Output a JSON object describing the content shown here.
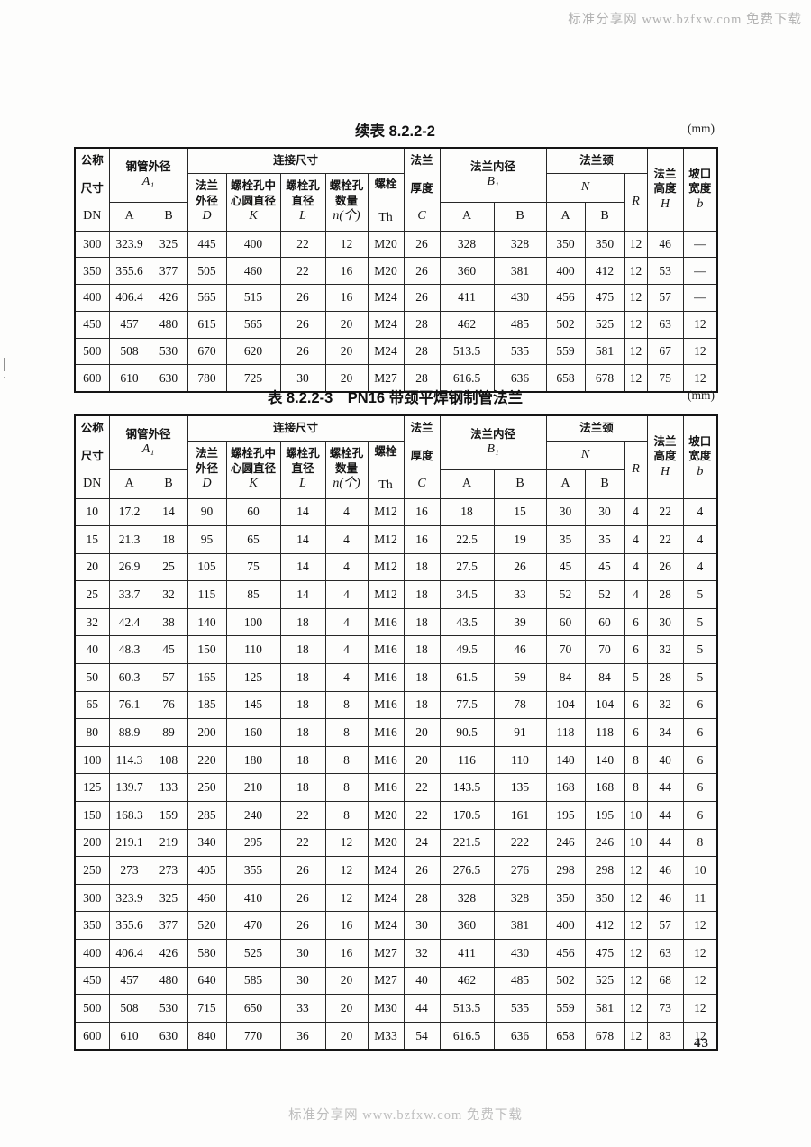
{
  "watermarks": {
    "top": "标准分享网 www.bzfxw.com 免费下载",
    "bottom": "标准分享网 www.bzfxw.com 免费下载"
  },
  "page": {
    "number": "43"
  },
  "columns": {
    "dn_top": "公称",
    "dn_mid": "尺寸",
    "dn_sym": "DN",
    "pipe_od": "钢管外径",
    "pipe_od_sym": "A₁",
    "conn": "连接尺寸",
    "d1": "法兰",
    "d2": "外径",
    "d_sym": "D",
    "k1": "螺栓孔中",
    "k2": "心圆直径",
    "k_sym": "K",
    "l1": "螺栓孔",
    "l2": "直径",
    "l_sym": "L",
    "n1": "螺栓孔",
    "n2": "数量",
    "n_sym": "n(个)",
    "th1": "螺栓",
    "th_sym": "Th",
    "c1": "法兰",
    "c2": "厚度",
    "c_sym": "C",
    "bore": "法兰内径",
    "bore_sym": "B₁",
    "neck": "法兰颈",
    "neck_sym": "N",
    "r_sym": "R",
    "h1": "法兰",
    "h2": "高度",
    "h_sym": "H",
    "b1": "坡口",
    "b2": "宽度",
    "b_sym": "b",
    "sub_a": "A",
    "sub_b": "B"
  },
  "table1": {
    "title": "续表 8.2.2-2",
    "unit": "(mm)",
    "rows": [
      [
        "300",
        "323.9",
        "325",
        "445",
        "400",
        "22",
        "12",
        "M20",
        "26",
        "328",
        "328",
        "350",
        "350",
        "12",
        "46",
        "—"
      ],
      [
        "350",
        "355.6",
        "377",
        "505",
        "460",
        "22",
        "16",
        "M20",
        "26",
        "360",
        "381",
        "400",
        "412",
        "12",
        "53",
        "—"
      ],
      [
        "400",
        "406.4",
        "426",
        "565",
        "515",
        "26",
        "16",
        "M24",
        "26",
        "411",
        "430",
        "456",
        "475",
        "12",
        "57",
        "—"
      ],
      [
        "450",
        "457",
        "480",
        "615",
        "565",
        "26",
        "20",
        "M24",
        "28",
        "462",
        "485",
        "502",
        "525",
        "12",
        "63",
        "12"
      ],
      [
        "500",
        "508",
        "530",
        "670",
        "620",
        "26",
        "20",
        "M24",
        "28",
        "513.5",
        "535",
        "559",
        "581",
        "12",
        "67",
        "12"
      ],
      [
        "600",
        "610",
        "630",
        "780",
        "725",
        "30",
        "20",
        "M27",
        "28",
        "616.5",
        "636",
        "658",
        "678",
        "12",
        "75",
        "12"
      ]
    ]
  },
  "table2": {
    "title": "表 8.2.2-3　PN16 带颈平焊钢制管法兰",
    "unit": "(mm)",
    "rows": [
      [
        "10",
        "17.2",
        "14",
        "90",
        "60",
        "14",
        "4",
        "M12",
        "16",
        "18",
        "15",
        "30",
        "30",
        "4",
        "22",
        "4"
      ],
      [
        "15",
        "21.3",
        "18",
        "95",
        "65",
        "14",
        "4",
        "M12",
        "16",
        "22.5",
        "19",
        "35",
        "35",
        "4",
        "22",
        "4"
      ],
      [
        "20",
        "26.9",
        "25",
        "105",
        "75",
        "14",
        "4",
        "M12",
        "18",
        "27.5",
        "26",
        "45",
        "45",
        "4",
        "26",
        "4"
      ],
      [
        "25",
        "33.7",
        "32",
        "115",
        "85",
        "14",
        "4",
        "M12",
        "18",
        "34.5",
        "33",
        "52",
        "52",
        "4",
        "28",
        "5"
      ],
      [
        "32",
        "42.4",
        "38",
        "140",
        "100",
        "18",
        "4",
        "M16",
        "18",
        "43.5",
        "39",
        "60",
        "60",
        "6",
        "30",
        "5"
      ],
      [
        "40",
        "48.3",
        "45",
        "150",
        "110",
        "18",
        "4",
        "M16",
        "18",
        "49.5",
        "46",
        "70",
        "70",
        "6",
        "32",
        "5"
      ],
      [
        "50",
        "60.3",
        "57",
        "165",
        "125",
        "18",
        "4",
        "M16",
        "18",
        "61.5",
        "59",
        "84",
        "84",
        "5",
        "28",
        "5"
      ],
      [
        "65",
        "76.1",
        "76",
        "185",
        "145",
        "18",
        "8",
        "M16",
        "18",
        "77.5",
        "78",
        "104",
        "104",
        "6",
        "32",
        "6"
      ],
      [
        "80",
        "88.9",
        "89",
        "200",
        "160",
        "18",
        "8",
        "M16",
        "20",
        "90.5",
        "91",
        "118",
        "118",
        "6",
        "34",
        "6"
      ],
      [
        "100",
        "114.3",
        "108",
        "220",
        "180",
        "18",
        "8",
        "M16",
        "20",
        "116",
        "110",
        "140",
        "140",
        "8",
        "40",
        "6"
      ],
      [
        "125",
        "139.7",
        "133",
        "250",
        "210",
        "18",
        "8",
        "M16",
        "22",
        "143.5",
        "135",
        "168",
        "168",
        "8",
        "44",
        "6"
      ],
      [
        "150",
        "168.3",
        "159",
        "285",
        "240",
        "22",
        "8",
        "M20",
        "22",
        "170.5",
        "161",
        "195",
        "195",
        "10",
        "44",
        "6"
      ],
      [
        "200",
        "219.1",
        "219",
        "340",
        "295",
        "22",
        "12",
        "M20",
        "24",
        "221.5",
        "222",
        "246",
        "246",
        "10",
        "44",
        "8"
      ],
      [
        "250",
        "273",
        "273",
        "405",
        "355",
        "26",
        "12",
        "M24",
        "26",
        "276.5",
        "276",
        "298",
        "298",
        "12",
        "46",
        "10"
      ],
      [
        "300",
        "323.9",
        "325",
        "460",
        "410",
        "26",
        "12",
        "M24",
        "28",
        "328",
        "328",
        "350",
        "350",
        "12",
        "46",
        "11"
      ],
      [
        "350",
        "355.6",
        "377",
        "520",
        "470",
        "26",
        "16",
        "M24",
        "30",
        "360",
        "381",
        "400",
        "412",
        "12",
        "57",
        "12"
      ],
      [
        "400",
        "406.4",
        "426",
        "580",
        "525",
        "30",
        "16",
        "M27",
        "32",
        "411",
        "430",
        "456",
        "475",
        "12",
        "63",
        "12"
      ],
      [
        "450",
        "457",
        "480",
        "640",
        "585",
        "30",
        "20",
        "M27",
        "40",
        "462",
        "485",
        "502",
        "525",
        "12",
        "68",
        "12"
      ],
      [
        "500",
        "508",
        "530",
        "715",
        "650",
        "33",
        "20",
        "M30",
        "44",
        "513.5",
        "535",
        "559",
        "581",
        "12",
        "73",
        "12"
      ],
      [
        "600",
        "610",
        "630",
        "840",
        "770",
        "36",
        "20",
        "M33",
        "54",
        "616.5",
        "636",
        "658",
        "678",
        "12",
        "83",
        "12"
      ]
    ]
  }
}
